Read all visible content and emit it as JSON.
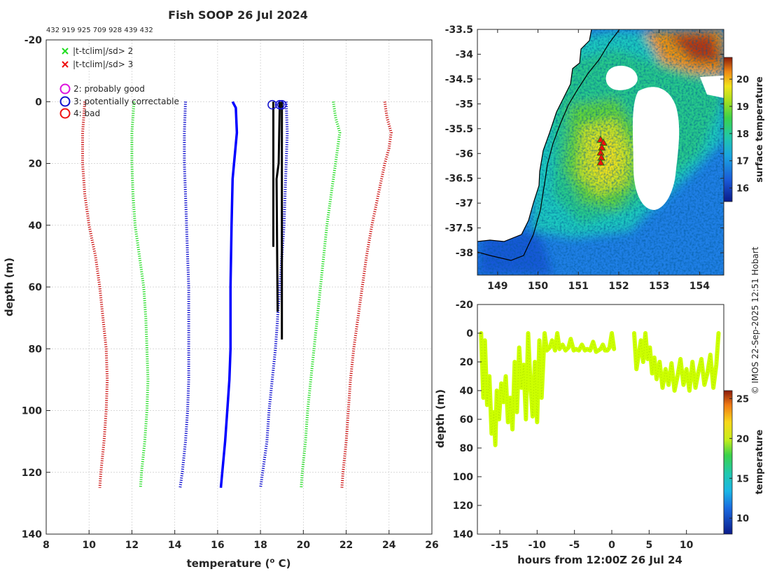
{
  "title": "Fish SOOP 26 Jul 2024",
  "id_line": "432 919 925 709 928 439 432",
  "credit": "© IMOS 22-Sep-2025 12:51 Hobart",
  "legend": {
    "cross_items": [
      {
        "label": "|t-tclim|/sd> 2",
        "color": "#22dd22"
      },
      {
        "label": "|t-tclim|/sd> 3",
        "color": "#ee1111"
      }
    ],
    "circle_items": [
      {
        "label": "2: probably good",
        "color": "#dd11dd"
      },
      {
        "label": "3: potentially correctable",
        "color": "#1111cc"
      },
      {
        "label": "4: bad",
        "color": "#ee1111"
      }
    ]
  },
  "colors": {
    "profile": "#0000ff",
    "clim3": "#cc1111",
    "clim2": "#22dd22",
    "clim1": "#0000cc",
    "inset": "#000000",
    "axis": "#262626",
    "grid": "#cccccc",
    "track": "#ccff00",
    "coast": "#000000",
    "land": "#ffffff",
    "station": "#ee1111"
  },
  "chart_data": [
    {
      "type": "line",
      "title": "Fish SOOP 26 Jul 2024",
      "xlabel": "temperature (° C)",
      "ylabel": "depth (m)",
      "xlim": [
        8,
        26
      ],
      "ylim": [
        140,
        -20
      ],
      "xticks": [
        8,
        10,
        12,
        14,
        16,
        18,
        20,
        22,
        24,
        26
      ],
      "yticks": [
        -20,
        0,
        20,
        40,
        60,
        80,
        100,
        120,
        140
      ],
      "grid": true,
      "series": [
        {
          "name": "profile",
          "style": "solid",
          "depth": [
            0,
            2,
            10,
            25,
            40,
            60,
            80,
            90,
            100,
            110,
            125
          ],
          "temp": [
            16.7,
            16.85,
            16.9,
            16.7,
            16.65,
            16.6,
            16.6,
            16.55,
            16.45,
            16.35,
            16.15
          ]
        },
        {
          "name": "clim -3sd",
          "style": "dotted",
          "depth": [
            0,
            5,
            10,
            20,
            30,
            40,
            50,
            60,
            70,
            80,
            90,
            100,
            110,
            120,
            125
          ],
          "temp": [
            9.8,
            9.75,
            9.7,
            9.7,
            9.8,
            10.0,
            10.3,
            10.5,
            10.65,
            10.8,
            10.85,
            10.8,
            10.7,
            10.55,
            10.5
          ]
        },
        {
          "name": "clim -2sd",
          "style": "dotted",
          "depth": [
            0,
            10,
            20,
            30,
            40,
            50,
            60,
            70,
            80,
            90,
            100,
            110,
            120,
            125
          ],
          "temp": [
            12.1,
            12.0,
            12.0,
            12.05,
            12.15,
            12.35,
            12.55,
            12.65,
            12.7,
            12.75,
            12.7,
            12.6,
            12.45,
            12.4
          ]
        },
        {
          "name": "clim -1sd",
          "style": "dotted",
          "depth": [
            0,
            10,
            20,
            30,
            40,
            50,
            60,
            70,
            80,
            90,
            100,
            110,
            120,
            125
          ],
          "temp": [
            14.5,
            14.45,
            14.45,
            14.5,
            14.55,
            14.6,
            14.65,
            14.65,
            14.65,
            14.65,
            14.6,
            14.5,
            14.35,
            14.25
          ]
        },
        {
          "name": "clim +1sd",
          "style": "dotted",
          "depth": [
            0,
            10,
            20,
            30,
            40,
            50,
            60,
            70,
            80,
            90,
            100,
            110,
            120,
            125
          ],
          "temp": [
            19.2,
            19.25,
            19.2,
            19.15,
            19.1,
            19.0,
            18.9,
            18.8,
            18.7,
            18.55,
            18.4,
            18.3,
            18.1,
            18.0
          ]
        },
        {
          "name": "clim +2sd",
          "style": "dotted",
          "depth": [
            0,
            5,
            10,
            20,
            30,
            40,
            50,
            60,
            70,
            80,
            90,
            100,
            110,
            120,
            125
          ],
          "temp": [
            21.4,
            21.5,
            21.7,
            21.5,
            21.3,
            21.1,
            20.95,
            20.8,
            20.65,
            20.5,
            20.35,
            20.2,
            20.1,
            19.95,
            19.9
          ]
        },
        {
          "name": "clim +3sd",
          "style": "dotted",
          "depth": [
            0,
            5,
            10,
            15,
            20,
            30,
            40,
            50,
            60,
            70,
            80,
            90,
            100,
            110,
            120,
            125
          ],
          "temp": [
            23.8,
            23.9,
            24.1,
            24.0,
            23.8,
            23.5,
            23.2,
            22.95,
            22.75,
            22.55,
            22.35,
            22.2,
            22.1,
            22.0,
            21.85,
            21.8
          ]
        },
        {
          "name": "inset 1",
          "style": "solid",
          "depth": [
            0,
            47
          ],
          "temp": [
            18.6,
            18.6
          ]
        },
        {
          "name": "inset 2",
          "style": "solid",
          "depth": [
            0,
            20,
            25,
            68
          ],
          "temp": [
            18.9,
            18.85,
            18.75,
            18.8
          ]
        },
        {
          "name": "inset 3",
          "style": "solid",
          "depth": [
            0,
            77
          ],
          "temp": [
            19.0,
            19.0
          ]
        }
      ],
      "flag_circles": [
        {
          "temp": 18.55,
          "depth": 1,
          "flag": 3
        },
        {
          "temp": 18.9,
          "depth": 1,
          "flag": 3
        },
        {
          "temp": 19.0,
          "depth": 1,
          "flag": 3
        }
      ]
    },
    {
      "type": "heatmap",
      "xlim": [
        148.5,
        154.6
      ],
      "ylim": [
        -38.45,
        -33.5
      ],
      "xticks": [
        149,
        150,
        151,
        152,
        153,
        154
      ],
      "yticks": [
        -33.5,
        -34,
        -34.5,
        -35,
        -35.5,
        -36,
        -36.5,
        -37,
        -37.5,
        -38
      ],
      "colorbar": {
        "label": "surface temperature",
        "range": [
          15.5,
          20.8
        ],
        "ticks": [
          16,
          17,
          18,
          19,
          20
        ]
      },
      "stations": [
        {
          "lon": 151.55,
          "lat": -35.72
        },
        {
          "lon": 151.62,
          "lat": -35.78
        },
        {
          "lon": 151.58,
          "lat": -35.88
        },
        {
          "lon": 151.55,
          "lat": -35.98
        },
        {
          "lon": 151.57,
          "lat": -36.08
        },
        {
          "lon": 151.55,
          "lat": -36.18
        }
      ]
    },
    {
      "type": "scatter",
      "xlabel": "hours from 12:00Z 26 Jul 24",
      "ylabel": "depth (m)",
      "xlim": [
        -18,
        15
      ],
      "ylim": [
        140,
        -20
      ],
      "xticks": [
        -15,
        -10,
        -5,
        0,
        5,
        10
      ],
      "yticks": [
        -20,
        0,
        20,
        40,
        60,
        80,
        100,
        120,
        140
      ],
      "colorbar": {
        "label": "temperature",
        "range": [
          8,
          26
        ],
        "ticks": [
          10,
          15,
          20,
          25
        ]
      },
      "segments": [
        {
          "hours": [
            -17.5,
            -17.2,
            -17.0,
            -16.7,
            -16.4,
            -16.1,
            -15.8,
            -15.6,
            -15.4,
            -15.1,
            -14.8,
            -14.5,
            -14.2,
            -13.9,
            -13.6,
            -13.3,
            -13.0,
            -12.7,
            -12.4,
            -12.1,
            -11.8,
            -11.5,
            -11.2,
            -10.9,
            -10.6,
            -10.3,
            -10.0,
            -9.7,
            -9.4,
            -9.0,
            -8.7
          ],
          "depth": [
            0,
            45,
            5,
            50,
            30,
            70,
            55,
            78,
            40,
            60,
            35,
            48,
            30,
            62,
            45,
            67,
            20,
            55,
            10,
            38,
            22,
            60,
            0,
            35,
            58,
            20,
            62,
            5,
            45,
            0,
            12
          ]
        },
        {
          "hours": [
            -8.7,
            -8.3,
            -8.0,
            -7.6,
            -7.3,
            -7.0,
            -6.6,
            -6.2,
            -5.8,
            -5.5,
            -5.1,
            -4.8,
            -4.4,
            -4.0,
            -3.6,
            -3.3,
            -2.9,
            -2.5,
            -2.1,
            -1.8,
            -1.5,
            -1.2,
            -0.9,
            -0.6,
            -0.3,
            0.0,
            0.3
          ],
          "depth": [
            12,
            10,
            5,
            12,
            0,
            11,
            8,
            12,
            10,
            4,
            12,
            11,
            12,
            8,
            12,
            11,
            12,
            6,
            13,
            12,
            11,
            8,
            12,
            12,
            10,
            0,
            11
          ]
        },
        {
          "hours": [
            3.0,
            3.3,
            3.6,
            3.9,
            4.2,
            4.5,
            4.8,
            5.1,
            5.4,
            5.7,
            6.0,
            6.4,
            6.8,
            7.2,
            7.6,
            8.0,
            8.4,
            8.8,
            9.2,
            9.6,
            10.0,
            10.4,
            10.8,
            11.2,
            11.6,
            12.0,
            12.4,
            12.8,
            13.2,
            13.6,
            14.0,
            14.3
          ],
          "depth": [
            0,
            25,
            15,
            5,
            20,
            0,
            18,
            10,
            28,
            17,
            32,
            20,
            38,
            25,
            36,
            21,
            40,
            30,
            18,
            36,
            25,
            40,
            20,
            38,
            27,
            18,
            36,
            28,
            15,
            38,
            22,
            0
          ]
        }
      ]
    }
  ]
}
